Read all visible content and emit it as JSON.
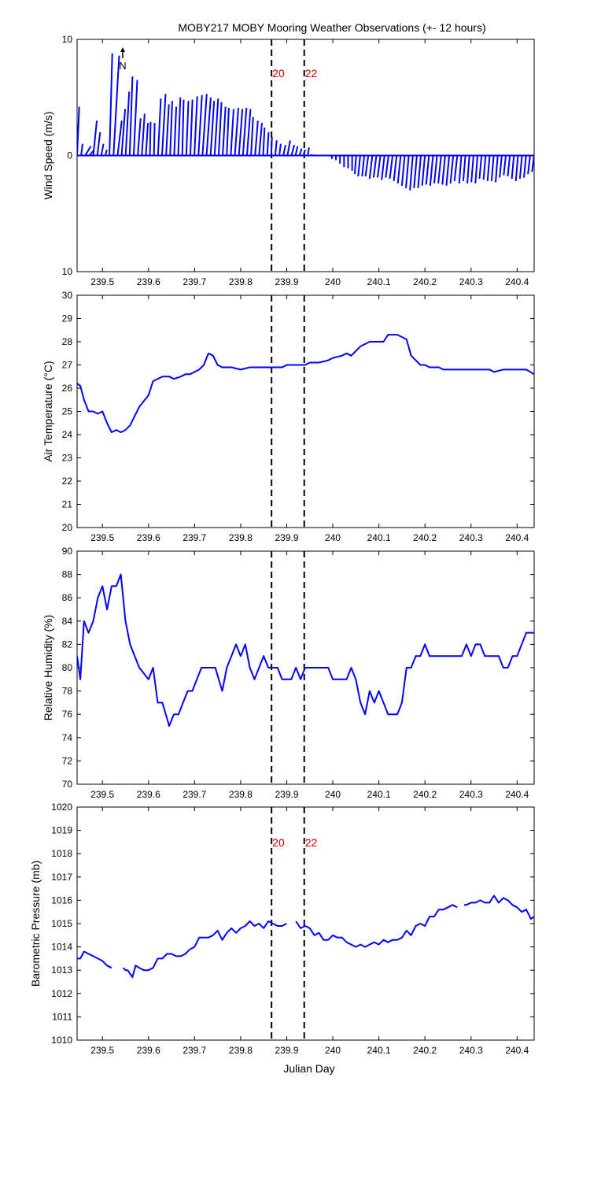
{
  "title": "MOBY217 MOBY Mooring Weather Observations (+- 12 hours)",
  "xlabel": "Julian Day",
  "colors": {
    "series": "#0000ff",
    "marker_label": "#cc0000",
    "axis": "#000000"
  },
  "markers": {
    "times": [
      239.867,
      239.938
    ],
    "labels": [
      "20",
      "22"
    ]
  },
  "chart_data": [
    {
      "id": "wind",
      "type": "vector",
      "ylabel": "Wind Speed (m/s)",
      "xlim": [
        239.445,
        240.437
      ],
      "ylim": [
        -10,
        10
      ],
      "yticks": [
        10,
        0,
        10
      ],
      "xticks": [
        "239.5",
        "239.6",
        "239.7",
        "239.8",
        "239.9",
        "240",
        "240.1",
        "240.2",
        "240.3",
        "240.4"
      ],
      "north_label": "N",
      "show_markers_labels": true,
      "u": [
        0.3,
        0.2,
        0.8,
        0.6,
        0.5,
        0.4,
        0.3,
        0.2,
        0.4,
        0.8,
        0.6,
        0.5,
        0.5,
        0.4,
        0.5,
        0.4,
        0.4,
        0.3,
        0.1,
        0.1,
        0.4,
        0.5,
        0.4,
        0.3,
        0.3,
        0.3,
        0.2,
        0.3,
        0.3,
        0.4,
        0.5,
        0.6,
        0.6,
        0.5,
        0.5,
        0.4,
        0.4,
        0.3,
        0.4,
        0.5,
        0.5,
        0.5,
        0.5,
        0.3,
        0.4,
        0.4,
        0.2,
        0.2,
        0.1,
        0.2,
        0.2,
        0.3,
        0.4,
        0.4,
        0.3,
        0.3,
        0.2,
        0.2,
        0.0,
        0.0,
        0.0,
        0.1,
        0.0,
        0.0,
        0.0,
        0.0,
        0.0,
        0.0,
        0.0,
        -0.2,
        -0.3,
        -0.3,
        -0.4,
        -0.4,
        -0.4,
        -0.4,
        -0.4,
        -0.4,
        -0.4,
        -0.4,
        -0.4,
        -0.4,
        -0.4,
        -0.4,
        -0.4,
        -0.4,
        -0.4,
        -0.4,
        -0.4,
        -0.4,
        -0.4,
        -0.4,
        -0.4,
        -0.4,
        -0.4,
        -0.3,
        -0.3,
        -0.3,
        -0.3,
        -0.3,
        -0.3,
        -0.3,
        -0.3,
        -0.3,
        -0.3,
        -0.3,
        -0.3,
        -0.3,
        -0.3,
        -0.3,
        -0.3,
        -0.3,
        -0.3,
        -0.3
      ],
      "v": [
        4.2,
        1.0,
        0.8,
        0.4,
        3.0,
        2.0,
        1.0,
        0.5,
        8.8,
        8.6,
        3.0,
        4.0,
        5.5,
        6.8,
        6.5,
        3.2,
        3.6,
        2.8,
        2.9,
        2.8,
        4.9,
        5.3,
        4.4,
        4.7,
        4.2,
        5.0,
        4.8,
        4.7,
        4.8,
        5.1,
        5.2,
        5.3,
        5.0,
        4.7,
        4.9,
        4.6,
        4.2,
        4.1,
        4.0,
        4.1,
        4.0,
        4.1,
        4.0,
        3.3,
        3.0,
        2.8,
        2.4,
        2.0,
        1.6,
        1.3,
        1.0,
        0.9,
        1.3,
        0.9,
        0.8,
        0.6,
        0.5,
        0.7,
        0.1,
        0.0,
        0.0,
        0.0,
        0.0,
        -0.3,
        -0.4,
        -0.7,
        -1.0,
        -1.1,
        -1.3,
        -1.6,
        -1.8,
        -1.8,
        -1.8,
        -2.0,
        -1.9,
        -1.9,
        -2.1,
        -1.9,
        -2.0,
        -2.2,
        -2.4,
        -2.6,
        -2.8,
        -3.0,
        -2.8,
        -2.8,
        -2.6,
        -2.5,
        -2.6,
        -2.4,
        -2.4,
        -2.5,
        -2.6,
        -2.4,
        -2.2,
        -2.4,
        -2.2,
        -2.4,
        -2.3,
        -2.4,
        -2.0,
        -2.1,
        -2.2,
        -2.2,
        -2.3,
        -1.9,
        -1.7,
        -1.8,
        -2.0,
        -2.2,
        -2.0,
        -1.9,
        -1.6,
        -1.4
      ]
    },
    {
      "id": "temp",
      "type": "line",
      "ylabel": "Air Temperature (°C)",
      "xlim": [
        239.445,
        240.437
      ],
      "ylim": [
        20,
        30
      ],
      "yticks": [
        20,
        21,
        22,
        23,
        24,
        25,
        26,
        27,
        28,
        29,
        30
      ],
      "xticks": [
        "239.5",
        "239.6",
        "239.7",
        "239.8",
        "239.9",
        "240",
        "240.1",
        "240.2",
        "240.3",
        "240.4"
      ],
      "show_markers_labels": false,
      "x": [
        239.445,
        239.452,
        239.46,
        239.47,
        239.48,
        239.49,
        239.5,
        239.51,
        239.52,
        239.53,
        239.54,
        239.55,
        239.56,
        239.57,
        239.58,
        239.6,
        239.61,
        239.63,
        239.645,
        239.655,
        239.67,
        239.68,
        239.69,
        239.7,
        239.71,
        239.72,
        239.73,
        239.74,
        239.75,
        239.76,
        239.77,
        239.78,
        239.8,
        239.82,
        239.83,
        239.85,
        239.87,
        239.89,
        239.9,
        239.92,
        239.94,
        239.95,
        239.97,
        239.99,
        240.0,
        240.02,
        240.03,
        240.04,
        240.05,
        240.06,
        240.08,
        240.1,
        240.11,
        240.12,
        240.13,
        240.14,
        240.16,
        240.17,
        240.18,
        240.19,
        240.2,
        240.21,
        240.23,
        240.24,
        240.26,
        240.28,
        240.3,
        240.32,
        240.34,
        240.35,
        240.37,
        240.38,
        240.4,
        240.41,
        240.42,
        240.437
      ],
      "y": [
        26.2,
        26.1,
        25.5,
        25.0,
        25.0,
        24.9,
        25.0,
        24.5,
        24.1,
        24.2,
        24.1,
        24.2,
        24.4,
        24.8,
        25.2,
        25.7,
        26.3,
        26.5,
        26.5,
        26.4,
        26.5,
        26.6,
        26.6,
        26.7,
        26.8,
        27.0,
        27.5,
        27.4,
        27.0,
        26.9,
        26.9,
        26.9,
        26.8,
        26.9,
        26.9,
        26.9,
        26.9,
        26.9,
        27.0,
        27.0,
        27.0,
        27.1,
        27.1,
        27.2,
        27.3,
        27.4,
        27.5,
        27.4,
        27.6,
        27.8,
        28.0,
        28.0,
        28.0,
        28.3,
        28.3,
        28.3,
        28.1,
        27.4,
        27.2,
        27.0,
        27.0,
        26.9,
        26.9,
        26.8,
        26.8,
        26.8,
        26.8,
        26.8,
        26.8,
        26.7,
        26.8,
        26.8,
        26.8,
        26.8,
        26.8,
        26.6
      ]
    },
    {
      "id": "rh",
      "type": "line",
      "ylabel": "Relative Humidity (%)",
      "xlim": [
        239.445,
        240.437
      ],
      "ylim": [
        70,
        90
      ],
      "yticks": [
        70,
        72,
        74,
        76,
        78,
        80,
        82,
        84,
        86,
        88,
        90
      ],
      "xticks": [
        "239.5",
        "239.6",
        "239.7",
        "239.8",
        "239.9",
        "240",
        "240.1",
        "240.2",
        "240.3",
        "240.4"
      ],
      "show_markers_labels": false,
      "x": [
        239.445,
        239.452,
        239.46,
        239.47,
        239.48,
        239.49,
        239.5,
        239.51,
        239.52,
        239.53,
        239.54,
        239.55,
        239.56,
        239.57,
        239.58,
        239.6,
        239.61,
        239.62,
        239.63,
        239.645,
        239.655,
        239.665,
        239.675,
        239.685,
        239.695,
        239.705,
        239.715,
        239.73,
        239.745,
        239.76,
        239.77,
        239.78,
        239.79,
        239.8,
        239.81,
        239.82,
        239.83,
        239.84,
        239.85,
        239.86,
        239.87,
        239.88,
        239.89,
        239.9,
        239.91,
        239.92,
        239.93,
        239.94,
        239.95,
        239.96,
        239.98,
        239.99,
        240.0,
        240.01,
        240.02,
        240.03,
        240.04,
        240.05,
        240.06,
        240.07,
        240.08,
        240.09,
        240.1,
        240.11,
        240.12,
        240.13,
        240.14,
        240.15,
        240.16,
        240.17,
        240.18,
        240.19,
        240.2,
        240.21,
        240.22,
        240.23,
        240.24,
        240.25,
        240.26,
        240.27,
        240.28,
        240.29,
        240.3,
        240.31,
        240.32,
        240.33,
        240.34,
        240.35,
        240.36,
        240.37,
        240.38,
        240.39,
        240.4,
        240.41,
        240.42,
        240.437
      ],
      "y": [
        81,
        79,
        84,
        83,
        84,
        86,
        87,
        85,
        87,
        87,
        88,
        84,
        82,
        81,
        80,
        79,
        80,
        77,
        77,
        75,
        76,
        76,
        77,
        78,
        78,
        79,
        80,
        80,
        80,
        78,
        80,
        81,
        82,
        81,
        82,
        80,
        79,
        80,
        81,
        80,
        80,
        80,
        79,
        79,
        79,
        80,
        79,
        80,
        80,
        80,
        80,
        80,
        79,
        79,
        79,
        79,
        80,
        79,
        77,
        76,
        78,
        77,
        78,
        77,
        76,
        76,
        76,
        77,
        80,
        80,
        81,
        81,
        82,
        81,
        81,
        81,
        81,
        81,
        81,
        81,
        81,
        82,
        81,
        82,
        82,
        81,
        81,
        81,
        81,
        80,
        80,
        81,
        81,
        82,
        83,
        83
      ]
    },
    {
      "id": "pressure",
      "type": "line",
      "ylabel": "Barometric Pressure (mb)",
      "xlim": [
        239.445,
        240.437
      ],
      "ylim": [
        1010,
        1020
      ],
      "yticks": [
        1010,
        1011,
        1012,
        1013,
        1014,
        1015,
        1016,
        1017,
        1018,
        1019,
        1020
      ],
      "xticks": [
        "239.5",
        "239.6",
        "239.7",
        "239.8",
        "239.9",
        "240",
        "240.1",
        "240.2",
        "240.3",
        "240.4"
      ],
      "show_markers_labels": true,
      "segments": [
        {
          "x": [
            239.445,
            239.452,
            239.46,
            239.47,
            239.48,
            239.49,
            239.5,
            239.51,
            239.52
          ],
          "y": [
            1013.5,
            1013.5,
            1013.8,
            1013.7,
            1013.6,
            1013.5,
            1013.4,
            1013.2,
            1013.1
          ]
        },
        {
          "x": [
            239.545,
            239.55,
            239.555,
            239.565,
            239.572,
            239.58,
            239.59,
            239.6,
            239.61,
            239.62,
            239.63,
            239.64,
            239.65,
            239.66,
            239.67,
            239.68,
            239.69,
            239.7,
            239.71,
            239.72,
            239.73,
            239.74,
            239.75,
            239.76,
            239.77,
            239.78,
            239.79,
            239.8,
            239.81,
            239.82,
            239.83,
            239.84,
            239.85,
            239.86,
            239.87,
            239.88,
            239.89,
            239.9
          ],
          "y": [
            1013.1,
            1013.0,
            1013.0,
            1012.7,
            1013.2,
            1013.1,
            1013.0,
            1013.0,
            1013.1,
            1013.5,
            1013.5,
            1013.7,
            1013.7,
            1013.6,
            1013.6,
            1013.7,
            1013.9,
            1014.0,
            1014.4,
            1014.4,
            1014.4,
            1014.5,
            1014.7,
            1014.3,
            1014.6,
            1014.8,
            1014.6,
            1014.8,
            1014.9,
            1015.1,
            1014.9,
            1015.0,
            1014.8,
            1015.1,
            1015.0,
            1014.9,
            1014.9,
            1015.0
          ]
        },
        {
          "x": [
            239.92,
            239.93,
            239.94,
            239.95,
            239.96,
            239.97,
            239.98,
            239.99,
            240.0,
            240.01,
            240.02,
            240.03,
            240.04,
            240.05,
            240.06,
            240.07,
            240.08,
            240.09,
            240.1,
            240.11,
            240.12,
            240.13,
            240.14,
            240.15,
            240.16,
            240.17,
            240.18,
            240.19,
            240.2,
            240.21,
            240.22,
            240.23,
            240.24,
            240.25,
            240.26,
            240.27
          ],
          "y": [
            1015.1,
            1014.8,
            1014.9,
            1014.8,
            1014.5,
            1014.6,
            1014.3,
            1014.3,
            1014.5,
            1014.4,
            1014.4,
            1014.2,
            1014.1,
            1014.0,
            1014.1,
            1014.0,
            1014.1,
            1014.2,
            1014.1,
            1014.3,
            1014.2,
            1014.3,
            1014.3,
            1014.4,
            1014.7,
            1014.5,
            1014.9,
            1015.0,
            1014.9,
            1015.3,
            1015.3,
            1015.6,
            1015.6,
            1015.7,
            1015.8,
            1015.7
          ]
        },
        {
          "x": [
            240.285,
            240.29,
            240.3,
            240.31,
            240.32,
            240.33,
            240.34,
            240.35,
            240.36,
            240.37,
            240.38,
            240.39,
            240.4,
            240.41,
            240.42,
            240.43,
            240.437
          ],
          "y": [
            1015.8,
            1015.8,
            1015.9,
            1015.9,
            1016.0,
            1015.9,
            1015.9,
            1016.2,
            1015.9,
            1016.1,
            1016.0,
            1015.8,
            1015.7,
            1015.5,
            1015.6,
            1015.2,
            1015.3
          ]
        }
      ]
    }
  ]
}
